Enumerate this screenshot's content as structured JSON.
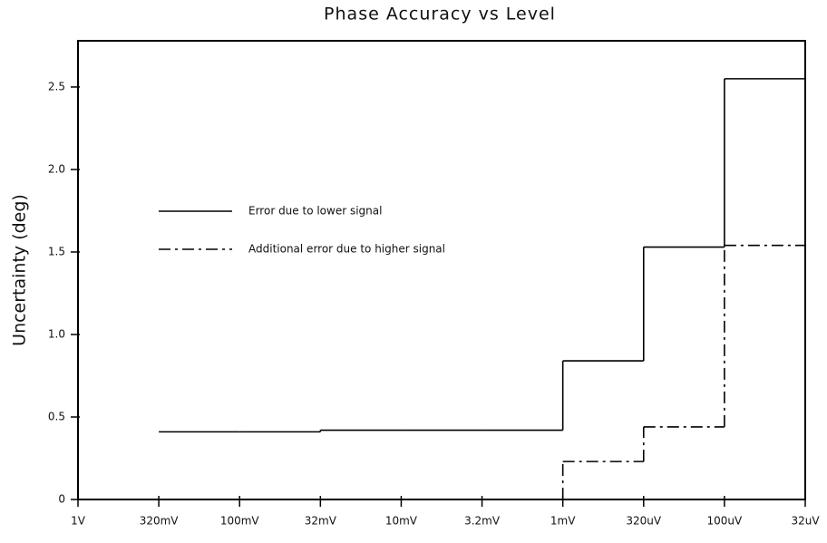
{
  "chart_data": {
    "type": "step",
    "title": "Phase Accuracy vs Level",
    "ylabel": "Uncertainty (deg)",
    "categories": [
      "1V",
      "320mV",
      "100mV",
      "32mV",
      "10mV",
      "3.2mV",
      "1mV",
      "320uV",
      "100uV",
      "32uV"
    ],
    "step": "pre",
    "series": [
      {
        "name": "Error due to lower signal",
        "color": "#000000",
        "style": "solid",
        "values": [
          null,
          null,
          0.41,
          0.41,
          0.42,
          0.42,
          0.42,
          0.84,
          1.53,
          2.55
        ]
      },
      {
        "name": "Additional error due to higher signal",
        "color": "#000000",
        "style": "dashdot",
        "values": [
          null,
          null,
          0,
          0,
          0,
          0,
          0,
          0.23,
          0.44,
          1.54
        ]
      }
    ],
    "ylim": [
      0,
      2.78
    ],
    "yticks": [
      0,
      0.5,
      {
        "value": 1,
        "label": "1.0"
      },
      1.5,
      {
        "value": 2,
        "label": "2.0"
      },
      2.5
    ],
    "legend": "center-left"
  }
}
